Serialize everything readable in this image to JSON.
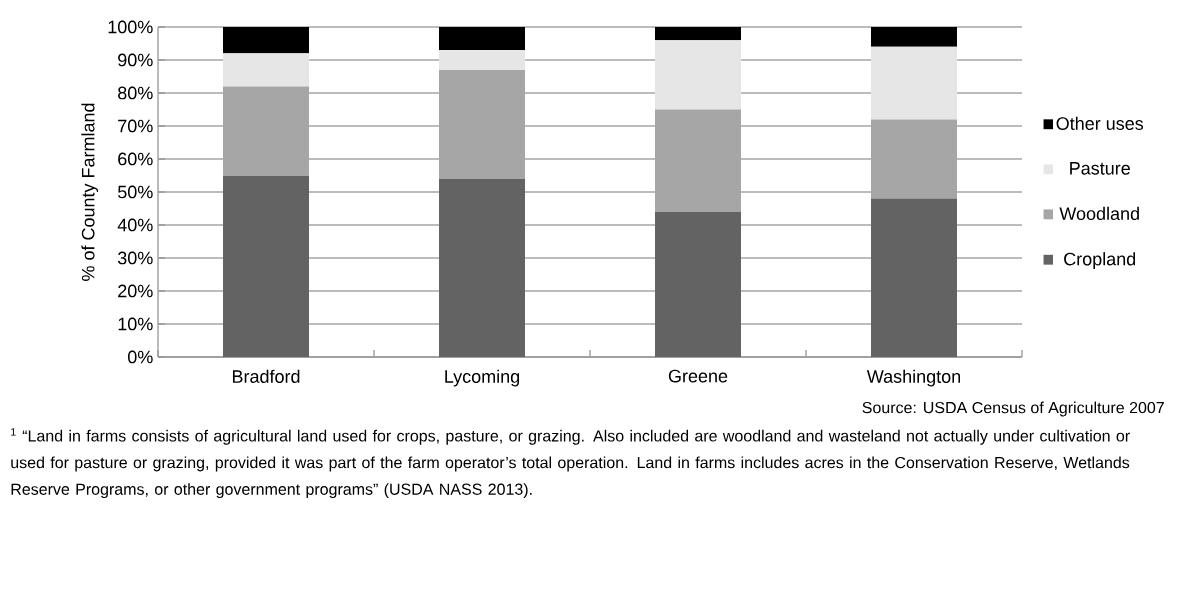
{
  "chart_data": {
    "type": "bar",
    "stacked": true,
    "ylabel": "% of County Farmland",
    "categories": [
      "Bradford",
      "Lycoming",
      "Greene",
      "Washington"
    ],
    "series": [
      {
        "name": "Cropland",
        "color": "#636363",
        "values": [
          55,
          54,
          44,
          48
        ]
      },
      {
        "name": "Woodland",
        "color": "#a6a6a6",
        "values": [
          27,
          33,
          31,
          24
        ]
      },
      {
        "name": "Pasture",
        "color": "#e6e6e6",
        "values": [
          10,
          6,
          21,
          22
        ]
      },
      {
        "name": "Other uses",
        "color": "#000000",
        "values": [
          8,
          7,
          4,
          6
        ]
      }
    ],
    "ylim": [
      0,
      100
    ],
    "yticks": [
      {
        "value": 0,
        "label": "0%"
      },
      {
        "value": 10,
        "label": "10%"
      },
      {
        "value": 20,
        "label": "20%"
      },
      {
        "value": 30,
        "label": "30%"
      },
      {
        "value": 40,
        "label": "40%"
      },
      {
        "value": 50,
        "label": "50%"
      },
      {
        "value": 60,
        "label": "60%"
      },
      {
        "value": 70,
        "label": "70%"
      },
      {
        "value": 80,
        "label": "80%"
      },
      {
        "value": 90,
        "label": "90%"
      },
      {
        "value": 100,
        "label": "100%"
      }
    ],
    "grid": "y",
    "legend": "right",
    "annotations": [
      "Source: USDA Census of Agriculture 2007",
      "$^{1}$ “Land in farms consists of agricultural land used for crops, pasture, or grazing. Also included are woodland and wasteland not actually under cultivation or used for pasture or grazing, provided it was part of the farm operator’s total operation. Land in farms includes acres in the Conservation Reserve, Wetlands Reserve Programs, or other government programs” (USDA NASS 2013)."
    ]
  }
}
